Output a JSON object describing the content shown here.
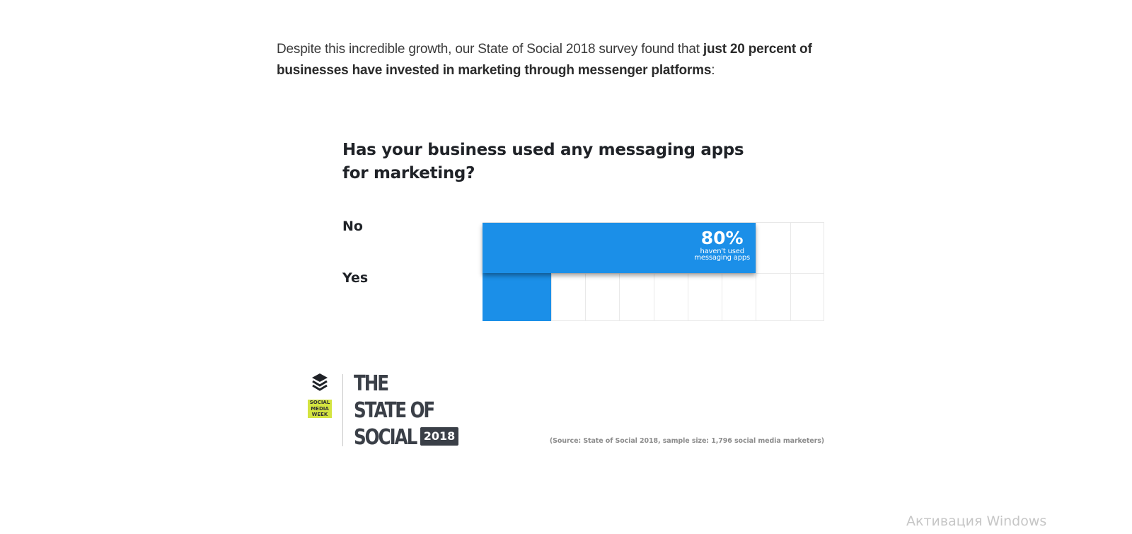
{
  "intro": {
    "text_before": "Despite this incredible growth, our State of Social 2018 survey found that ",
    "text_bold": "just 20 percent of businesses have invested in marketing through messenger platforms",
    "text_after": ":"
  },
  "chart_data": {
    "type": "bar",
    "orientation": "horizontal",
    "title": "Has your business used any messaging apps for marketing?",
    "categories": [
      "No",
      "Yes"
    ],
    "values": [
      80,
      20
    ],
    "unit": "%",
    "xlim": [
      0,
      100
    ],
    "grid": true,
    "grid_columns": 10,
    "annotations": [
      {
        "category": "No",
        "value_label": "80%",
        "text": "haven't used messaging apps"
      }
    ],
    "colors": {
      "bar": "#1b8fe8"
    },
    "source": "(Source: State of Social 2018, sample size: 1,796 social media marketers)"
  },
  "chart": {
    "title": "Has your business used any messaging apps for marketing?",
    "rows": [
      {
        "label": "No",
        "value": 80
      },
      {
        "label": "Yes",
        "value": 20
      }
    ],
    "annotation": {
      "pct": "80%",
      "line1": "haven't used",
      "line2": "messaging apps"
    }
  },
  "branding": {
    "logo_icon": "layers-icon",
    "smw_lines": [
      "SOCIAL",
      "MEDIA",
      "WEEK"
    ],
    "title_lines": [
      "THE",
      "STATE OF",
      "SOCIAL"
    ],
    "year": "2018"
  },
  "source": "(Source: State of Social 2018, sample size: 1,796 social media marketers)",
  "watermark": "Активация Windows"
}
